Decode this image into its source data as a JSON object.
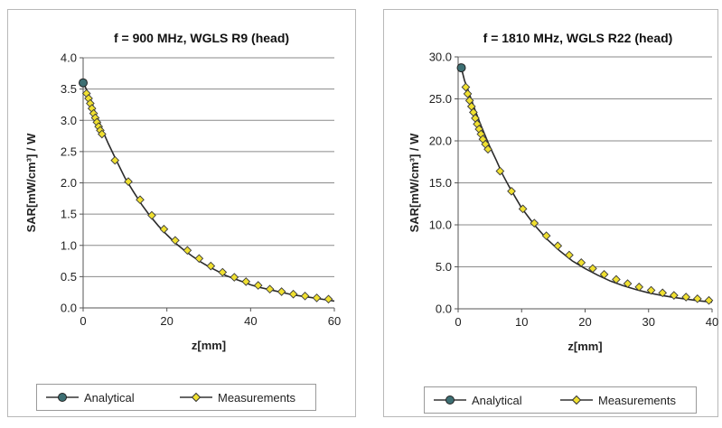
{
  "chart_data": [
    {
      "type": "line",
      "title": "f = 900 MHz, WGLS R9 (head)",
      "xlabel": "z[mm]",
      "ylabel": "SAR[mW/cm³] / W",
      "xlim": [
        0,
        60
      ],
      "ylim": [
        0,
        4
      ],
      "x_ticks": [
        "0",
        "20",
        "40",
        "60"
      ],
      "y_ticks": [
        "0.0",
        "0.5",
        "1.0",
        "1.5",
        "2.0",
        "2.5",
        "3.0",
        "3.5",
        "4.0"
      ],
      "grid": "horizontal",
      "legend_position": "bottom",
      "series": [
        {
          "name": "Analytical",
          "color": "#3d6f73",
          "points": [
            [
              0,
              3.6
            ],
            [
              1.2,
              3.44
            ],
            [
              2,
              3.3
            ],
            [
              3,
              3.1
            ],
            [
              4,
              2.95
            ],
            [
              5,
              2.78
            ],
            [
              6,
              2.63
            ],
            [
              8,
              2.35
            ],
            [
              10,
              2.08
            ],
            [
              12,
              1.86
            ],
            [
              14,
              1.65
            ],
            [
              16,
              1.47
            ],
            [
              18,
              1.31
            ],
            [
              20,
              1.17
            ],
            [
              22,
              1.04
            ],
            [
              24,
              0.93
            ],
            [
              26,
              0.83
            ],
            [
              28,
              0.74
            ],
            [
              30,
              0.66
            ],
            [
              32,
              0.59
            ],
            [
              34,
              0.52
            ],
            [
              36,
              0.47
            ],
            [
              38,
              0.42
            ],
            [
              40,
              0.37
            ],
            [
              42,
              0.33
            ],
            [
              44,
              0.3
            ],
            [
              46,
              0.27
            ],
            [
              48,
              0.24
            ],
            [
              50,
              0.21
            ],
            [
              52,
              0.19
            ],
            [
              54,
              0.17
            ],
            [
              56,
              0.15
            ],
            [
              58,
              0.13
            ],
            [
              60,
              0.11
            ]
          ]
        },
        {
          "name": "Measurements",
          "color": "#f0e030",
          "points": [
            [
              0.8,
              3.43
            ],
            [
              1.3,
              3.35
            ],
            [
              1.7,
              3.27
            ],
            [
              2.1,
              3.19
            ],
            [
              2.5,
              3.11
            ],
            [
              2.9,
              3.04
            ],
            [
              3.3,
              2.97
            ],
            [
              3.7,
              2.9
            ],
            [
              4.1,
              2.84
            ],
            [
              4.5,
              2.78
            ],
            [
              7.6,
              2.36
            ],
            [
              10.8,
              2.02
            ],
            [
              13.6,
              1.73
            ],
            [
              16.4,
              1.48
            ],
            [
              19.3,
              1.26
            ],
            [
              22,
              1.08
            ],
            [
              24.9,
              0.92
            ],
            [
              27.7,
              0.79
            ],
            [
              30.5,
              0.67
            ],
            [
              33.3,
              0.57
            ],
            [
              36.1,
              0.49
            ],
            [
              38.9,
              0.42
            ],
            [
              41.8,
              0.36
            ],
            [
              44.6,
              0.3
            ],
            [
              47.4,
              0.26
            ],
            [
              50.2,
              0.22
            ],
            [
              53,
              0.19
            ],
            [
              55.8,
              0.16
            ],
            [
              58.6,
              0.14
            ]
          ]
        }
      ]
    },
    {
      "type": "line",
      "title": "f = 1810 MHz, WGLS R22 (head)",
      "xlabel": "z[mm]",
      "ylabel": "SAR[mW/cm³] / W",
      "xlim": [
        0,
        40
      ],
      "ylim": [
        0,
        30
      ],
      "x_ticks": [
        "0",
        "10",
        "20",
        "30",
        "40"
      ],
      "y_ticks": [
        "0.0",
        "5.0",
        "10.0",
        "15.0",
        "20.0",
        "25.0",
        "30.0"
      ],
      "grid": "horizontal",
      "legend_position": "bottom",
      "series": [
        {
          "name": "Analytical",
          "color": "#3d6f73",
          "points": [
            [
              0.5,
              28.7
            ],
            [
              1,
              27.2
            ],
            [
              1.5,
              26.2
            ],
            [
              2,
              25.1
            ],
            [
              2.5,
              24.0
            ],
            [
              3,
              23.0
            ],
            [
              3.5,
              22.0
            ],
            [
              4,
              21.1
            ],
            [
              5,
              19.3
            ],
            [
              6,
              17.7
            ],
            [
              7,
              16.0
            ],
            [
              8,
              14.6
            ],
            [
              9,
              13.3
            ],
            [
              10,
              12.0
            ],
            [
              12,
              10.0
            ],
            [
              14,
              8.3
            ],
            [
              16,
              6.9
            ],
            [
              18,
              5.7
            ],
            [
              20,
              4.8
            ],
            [
              22,
              4.0
            ],
            [
              24,
              3.3
            ],
            [
              26,
              2.75
            ],
            [
              28,
              2.3
            ],
            [
              30,
              1.9
            ],
            [
              32,
              1.6
            ],
            [
              34,
              1.35
            ],
            [
              36,
              1.15
            ],
            [
              38,
              0.95
            ],
            [
              40,
              0.8
            ]
          ]
        },
        {
          "name": "Measurements",
          "color": "#f0e030",
          "points": [
            [
              1.2,
              26.4
            ],
            [
              1.5,
              25.6
            ],
            [
              1.8,
              24.8
            ],
            [
              2.1,
              24.1
            ],
            [
              2.4,
              23.4
            ],
            [
              2.7,
              22.7
            ],
            [
              3,
              22
            ],
            [
              3.3,
              21.4
            ],
            [
              3.6,
              20.8
            ],
            [
              3.9,
              20.2
            ],
            [
              4.3,
              19.6
            ],
            [
              4.7,
              19.0
            ],
            [
              6.6,
              16.4
            ],
            [
              8.4,
              14.0
            ],
            [
              10.2,
              11.9
            ],
            [
              12,
              10.2
            ],
            [
              13.9,
              8.7
            ],
            [
              15.7,
              7.5
            ],
            [
              17.5,
              6.4
            ],
            [
              19.4,
              5.5
            ],
            [
              21.2,
              4.8
            ],
            [
              23,
              4.1
            ],
            [
              24.9,
              3.5
            ],
            [
              26.7,
              3.0
            ],
            [
              28.5,
              2.6
            ],
            [
              30.4,
              2.2
            ],
            [
              32.2,
              1.9
            ],
            [
              34,
              1.6
            ],
            [
              35.9,
              1.4
            ],
            [
              37.7,
              1.2
            ],
            [
              39.5,
              1.0
            ]
          ]
        }
      ]
    }
  ]
}
